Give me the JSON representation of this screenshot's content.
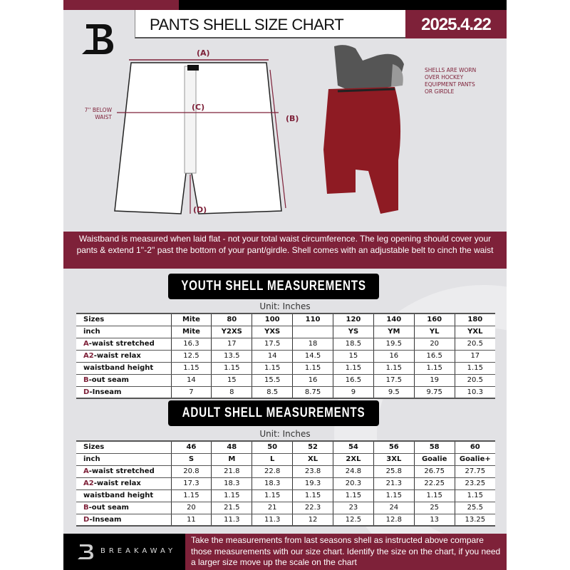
{
  "header": {
    "title": "PANTS SHELL SIZE CHART",
    "date": "2025.4.22",
    "logo": "B"
  },
  "diagram": {
    "label_a": "(A)",
    "label_b": "(B)",
    "label_c": "(C)",
    "label_d": "(D)",
    "below_waist": "7'' BELOW WAIST",
    "shell_note": "SHELLS ARE WORN OVER HOCKEY EQUIPMENT PANTS OR GIRDLE"
  },
  "banner": {
    "text": "Waistband is measured when laid flat - not your total waist circumference. The leg opening should cover your pants & extend 1''-2'' past the bottom of your pant/girdle. Shell comes with an adjustable belt to cinch the waist"
  },
  "youth": {
    "heading": "YOUTH SHELL MEASUREMENTS",
    "unit": "Unit: Inches",
    "rows": [
      {
        "mark": "",
        "label": "Sizes",
        "values": [
          "Mite",
          "80",
          "100",
          "110",
          "120",
          "140",
          "160",
          "180"
        ]
      },
      {
        "mark": "",
        "label": "inch",
        "values": [
          "Mite",
          "Y2XS",
          "YXS",
          "",
          "YS",
          "YM",
          "YL",
          "YXL"
        ]
      },
      {
        "mark": "A",
        "label": "-waist stretched",
        "values": [
          "16.3",
          "17",
          "17.5",
          "18",
          "18.5",
          "19.5",
          "20",
          "20.5"
        ]
      },
      {
        "mark": "A2",
        "label": "-waist relax",
        "values": [
          "12.5",
          "13.5",
          "14",
          "14.5",
          "15",
          "16",
          "16.5",
          "17"
        ]
      },
      {
        "mark": "",
        "label": "waistband height",
        "values": [
          "1.15",
          "1.15",
          "1.15",
          "1.15",
          "1.15",
          "1.15",
          "1.15",
          "1.15"
        ]
      },
      {
        "mark": "B",
        "label": "-out seam",
        "values": [
          "14",
          "15",
          "15.5",
          "16",
          "16.5",
          "17.5",
          "19",
          "20.5"
        ]
      },
      {
        "mark": "D",
        "label": "-Inseam",
        "values": [
          "7",
          "8",
          "8.5",
          "8.75",
          "9",
          "9.5",
          "9.75",
          "10.3"
        ]
      }
    ]
  },
  "adult": {
    "heading": "ADULT SHELL MEASUREMENTS",
    "unit": "Unit: Inches",
    "rows": [
      {
        "mark": "",
        "label": "Sizes",
        "values": [
          "46",
          "48",
          "50",
          "52",
          "54",
          "56",
          "58",
          "60"
        ]
      },
      {
        "mark": "",
        "label": "inch",
        "values": [
          "S",
          "M",
          "L",
          "XL",
          "2XL",
          "3XL",
          "Goalie",
          "Goalie+"
        ]
      },
      {
        "mark": "A",
        "label": "-waist stretched",
        "values": [
          "20.8",
          "21.8",
          "22.8",
          "23.8",
          "24.8",
          "25.8",
          "26.75",
          "27.75"
        ]
      },
      {
        "mark": "A2",
        "label": "-waist relax",
        "values": [
          "17.3",
          "18.3",
          "18.3",
          "19.3",
          "20.3",
          "21.3",
          "22.25",
          "23.25"
        ]
      },
      {
        "mark": "",
        "label": "waistband height",
        "values": [
          "1.15",
          "1.15",
          "1.15",
          "1.15",
          "1.15",
          "1.15",
          "1.15",
          "1.15"
        ]
      },
      {
        "mark": "B",
        "label": "-out seam",
        "values": [
          "20",
          "21.5",
          "21",
          "22.3",
          "23",
          "24",
          "25",
          "25.5"
        ]
      },
      {
        "mark": "D",
        "label": "-Inseam",
        "values": [
          "11",
          "11.3",
          "11.3",
          "12",
          "12.5",
          "12.8",
          "13",
          "13.25"
        ]
      }
    ]
  },
  "footer": {
    "brand": "BREAKAWAY",
    "text": "Take the measurements from last seasons shell as instructed above compare those measurements  with our size chart. Identify the size on the chart, if you need a larger size move up the scale on the chart"
  },
  "colors": {
    "accent": "#7e2139",
    "background": "#e2e2e5"
  }
}
